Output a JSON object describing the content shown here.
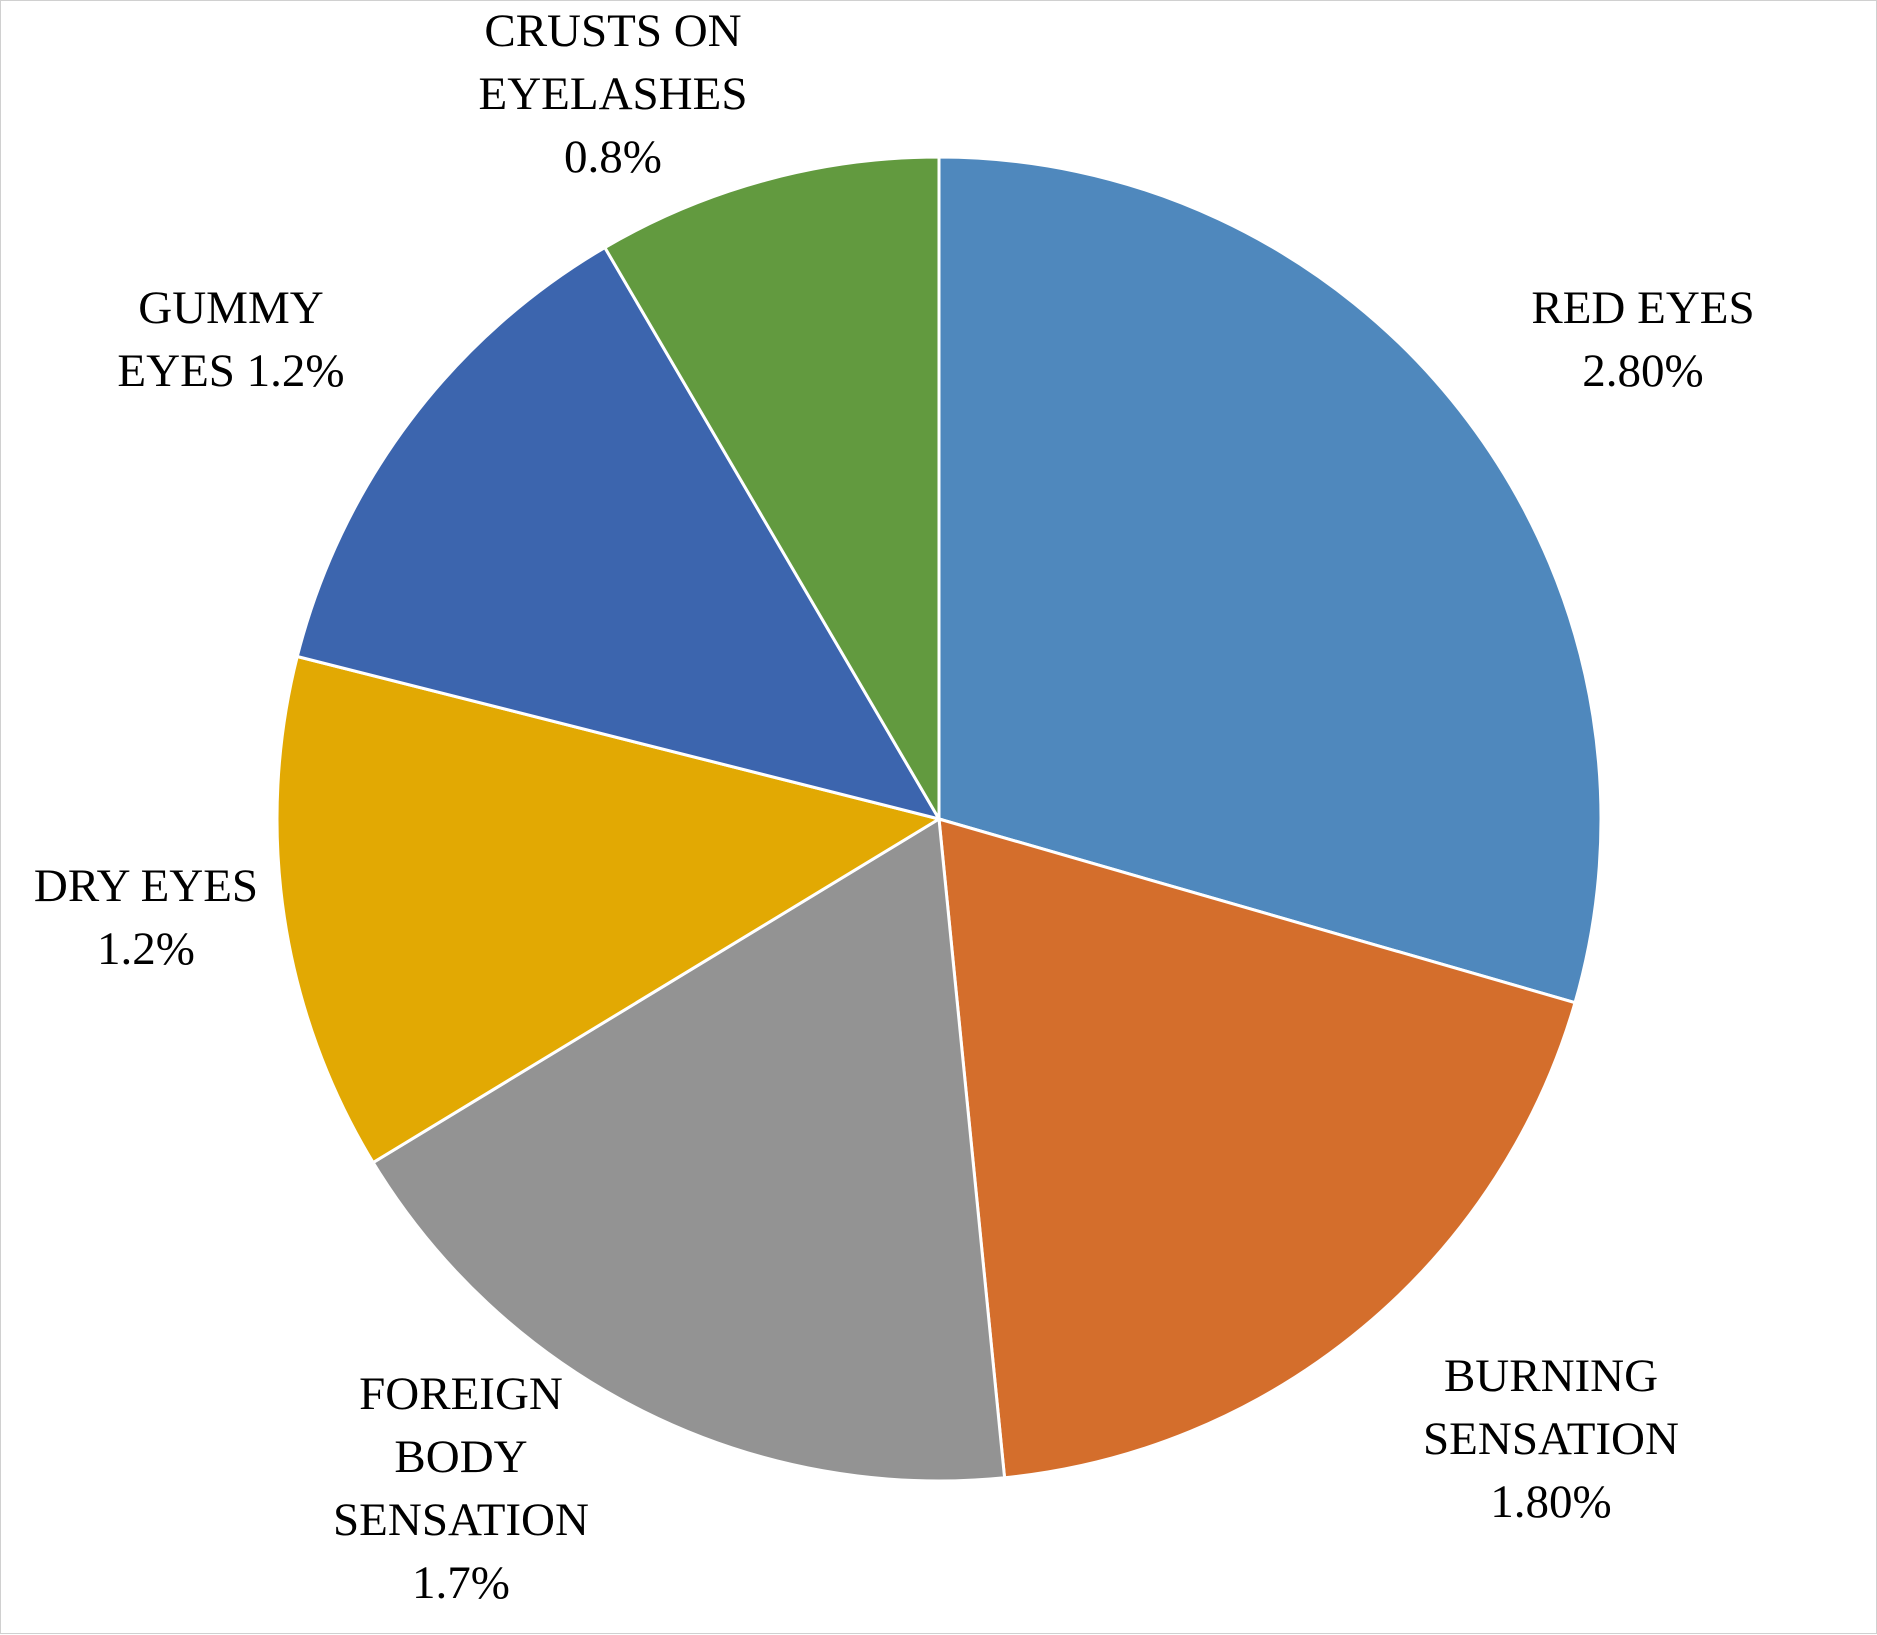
{
  "chart_data": {
    "type": "pie",
    "slices": [
      {
        "label_lines": [
          "RED EYES",
          "2.80%"
        ],
        "value": 2.8,
        "color": "#4F88BD"
      },
      {
        "label_lines": [
          "BURNING",
          "SENSATION",
          "1.80%"
        ],
        "value": 1.8,
        "color": "#D46E2C"
      },
      {
        "label_lines": [
          "FOREIGN",
          "BODY",
          "SENSATION",
          "1.7%"
        ],
        "value": 1.7,
        "color": "#939393"
      },
      {
        "label_lines": [
          "DRY EYES",
          "1.2%"
        ],
        "value": 1.2,
        "color": "#E2A903"
      },
      {
        "label_lines": [
          "GUMMY",
          "EYES 1.2%"
        ],
        "value": 1.2,
        "color": "#3C65AE"
      },
      {
        "label_lines": [
          "CRUSTS ON",
          "EYELASHES",
          "0.8%"
        ],
        "value": 0.8,
        "color": "#629A3F"
      }
    ],
    "start_angle": "12 o'clock",
    "direction": "clockwise",
    "slice_border_color": "#ffffff",
    "legend": "none"
  }
}
